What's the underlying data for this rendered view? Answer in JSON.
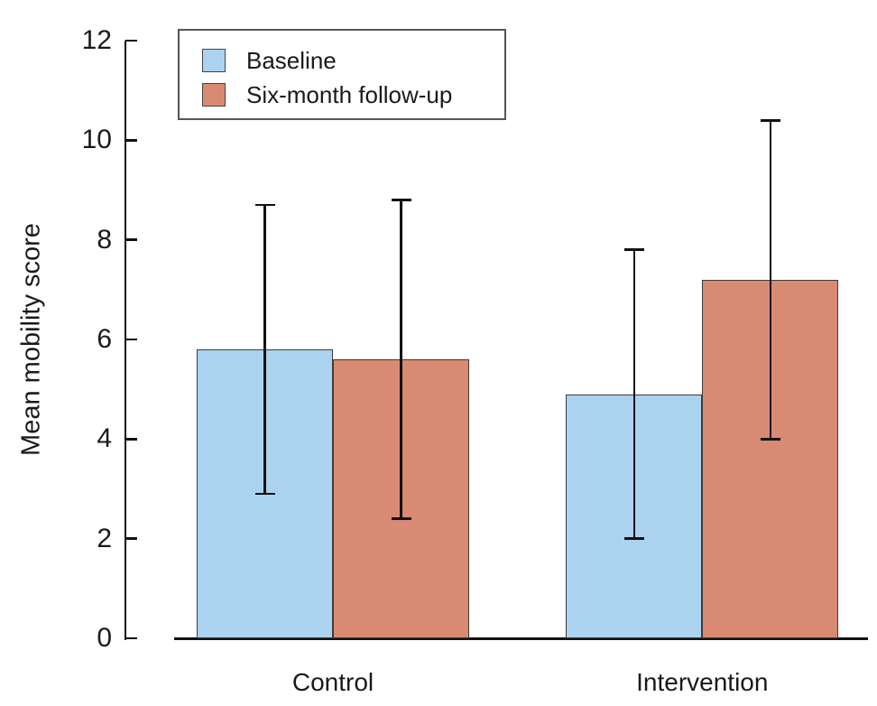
{
  "chart_data": {
    "type": "bar",
    "title": "",
    "xlabel": "",
    "ylabel": "Mean mobility score",
    "categories": [
      "Control",
      "Intervention"
    ],
    "series": [
      {
        "name": "Baseline",
        "color": "#ABD3F0",
        "values": [
          5.8,
          4.9
        ],
        "error_low": [
          2.9,
          2.0
        ],
        "error_high": [
          8.7,
          7.8
        ]
      },
      {
        "name": "Six-month follow-up",
        "color": "#D98A72",
        "values": [
          5.6,
          7.2
        ],
        "error_low": [
          2.4,
          4.0
        ],
        "error_high": [
          8.8,
          10.4
        ]
      }
    ],
    "ylim": [
      0,
      12
    ],
    "yticks": [
      0,
      2,
      4,
      6,
      8,
      10,
      12
    ],
    "grid": false,
    "legend_position": "top-left",
    "colors": {
      "axis": "#111111",
      "bar_edge": "#3b3b3b",
      "error_bar": "#111111",
      "text": "#1a1a1a",
      "background": "#ffffff"
    }
  }
}
